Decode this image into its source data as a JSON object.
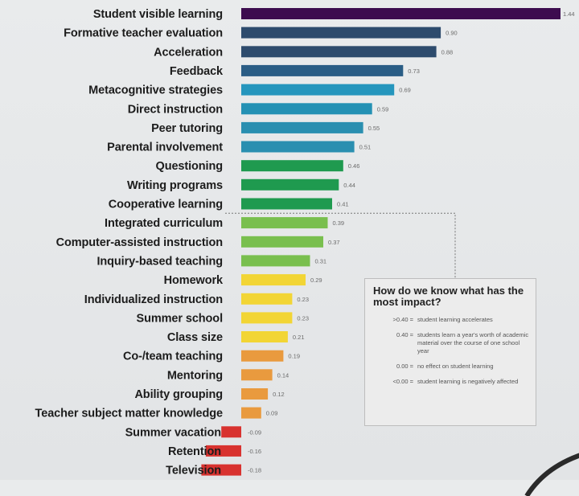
{
  "chart_data": {
    "type": "bar",
    "orientation": "horizontal",
    "title": "",
    "xlabel": "",
    "ylabel": "",
    "xlim": [
      -0.18,
      1.44
    ],
    "grid": false,
    "categories": [
      "Student visible learning",
      "Formative teacher evaluation",
      "Acceleration",
      "Feedback",
      "Metacognitive strategies",
      "Direct instruction",
      "Peer tutoring",
      "Parental involvement",
      "Questioning",
      "Writing programs",
      "Cooperative learning",
      "Integrated curriculum",
      "Computer-assisted instruction",
      "Inquiry-based teaching",
      "Homework",
      "Individualized instruction",
      "Summer school",
      "Class size",
      "Co-/team teaching",
      "Mentoring",
      "Ability grouping",
      "Teacher subject matter knowledge",
      "Summer vacation",
      "Retention",
      "Television"
    ],
    "values": [
      1.44,
      0.9,
      0.88,
      0.73,
      0.69,
      0.59,
      0.55,
      0.51,
      0.46,
      0.44,
      0.41,
      0.39,
      0.37,
      0.31,
      0.29,
      0.23,
      0.23,
      0.21,
      0.19,
      0.14,
      0.12,
      0.09,
      -0.09,
      -0.16,
      -0.18
    ],
    "value_labels": [
      "1.44",
      "0.90",
      "0.88",
      "0.73",
      "0.69",
      "0.59",
      "0.55",
      "0.51",
      "0.46",
      "0.44",
      "0.41",
      "0.39",
      "0.37",
      "0.31",
      "0.29",
      "0.23",
      "0.23",
      "0.21",
      "0.19",
      "0.14",
      "0.12",
      "0.09",
      "-0.09",
      "-0.16",
      "-0.18"
    ],
    "bar_colors": [
      "#3d0c4f",
      "#2d4b6d",
      "#2d4b6d",
      "#2a5d85",
      "#2596bd",
      "#2491b4",
      "#2a8fb0",
      "#2a8fb0",
      "#1f9a4f",
      "#1f9a4f",
      "#1f9a4f",
      "#79bf4e",
      "#79bf4e",
      "#79bf4e",
      "#f2d535",
      "#f2d535",
      "#f2d535",
      "#f2d535",
      "#e99a3e",
      "#e99a3e",
      "#e99a3e",
      "#e99a3e",
      "#d8322f",
      "#d8322f",
      "#d8322f"
    ]
  },
  "legend": {
    "title": "How do we know what has the most impact?",
    "rows": [
      {
        "key": ">0.40 =",
        "desc": "student learning accelerates"
      },
      {
        "key": "0.40 =",
        "desc": "students learn a year's worth of academic material over the course of one school year"
      },
      {
        "key": "0.00 =",
        "desc": "no effect on student learning"
      },
      {
        "key": "<0.00 =",
        "desc": "student learning is negatively affected"
      }
    ]
  }
}
